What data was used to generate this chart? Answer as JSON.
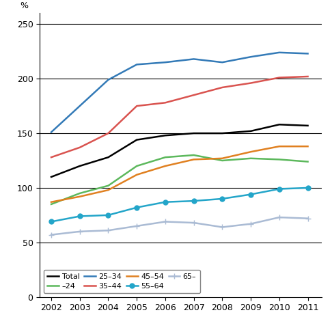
{
  "years": [
    2002,
    2003,
    2004,
    2005,
    2006,
    2007,
    2008,
    2009,
    2010,
    2011
  ],
  "series": {
    "Total": {
      "values": [
        110,
        120,
        128,
        144,
        148,
        150,
        150,
        152,
        158,
        157
      ],
      "color": "#000000",
      "marker": null,
      "markersize": 0,
      "linewidth": 1.8
    },
    "-24": {
      "values": [
        85,
        95,
        102,
        120,
        128,
        130,
        125,
        127,
        126,
        124
      ],
      "color": "#5cb85c",
      "marker": null,
      "markersize": 0,
      "linewidth": 1.8
    },
    "25-34": {
      "values": [
        151,
        175,
        199,
        213,
        215,
        218,
        215,
        220,
        224,
        223
      ],
      "color": "#337ab7",
      "marker": null,
      "markersize": 0,
      "linewidth": 1.8
    },
    "35-44": {
      "values": [
        128,
        137,
        150,
        175,
        178,
        185,
        192,
        196,
        201,
        202
      ],
      "color": "#d9534f",
      "marker": null,
      "markersize": 0,
      "linewidth": 1.8
    },
    "45-54": {
      "values": [
        87,
        92,
        98,
        112,
        120,
        126,
        127,
        133,
        138,
        138
      ],
      "color": "#e08020",
      "marker": null,
      "markersize": 0,
      "linewidth": 1.8
    },
    "55-64": {
      "values": [
        69,
        74,
        75,
        82,
        87,
        88,
        90,
        94,
        99,
        100
      ],
      "color": "#23a5c9",
      "marker": "o",
      "markersize": 5,
      "linewidth": 1.8
    },
    "65-": {
      "values": [
        57,
        60,
        61,
        65,
        69,
        68,
        64,
        67,
        73,
        72
      ],
      "color": "#aabbd4",
      "marker": "+",
      "markersize": 6,
      "linewidth": 1.8
    }
  },
  "ylabel": "%",
  "ylim": [
    0,
    260
  ],
  "yticks": [
    0,
    50,
    100,
    150,
    200,
    250
  ],
  "xlim": [
    2001.6,
    2011.5
  ],
  "xticks": [
    2002,
    2003,
    2004,
    2005,
    2006,
    2007,
    2008,
    2009,
    2010,
    2011
  ],
  "grid_y": [
    50,
    100,
    150,
    200,
    250
  ],
  "legend_order": [
    "Total",
    "-24",
    "25-34",
    "35-44",
    "45-54",
    "55-64",
    "65-"
  ],
  "legend_labels": [
    "Total",
    "–24",
    "25–34",
    "35–44",
    "45–54",
    "55–64",
    "65–"
  ],
  "background_color": "#ffffff",
  "figure_width": 4.86,
  "figure_height": 4.83,
  "dpi": 100
}
